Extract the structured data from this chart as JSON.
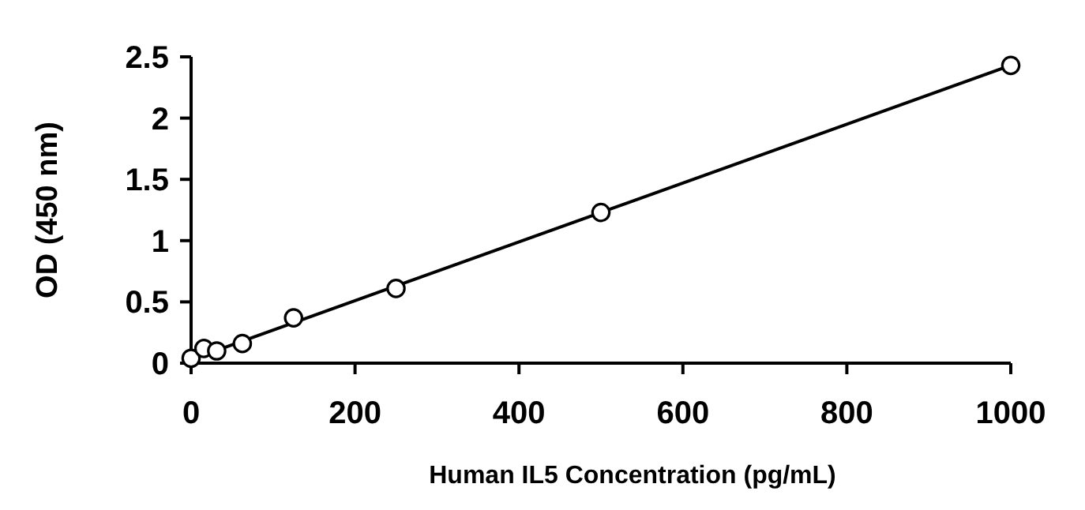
{
  "chart_data": {
    "type": "scatter",
    "xlabel": "Human IL5 Concentration (pg/mL)",
    "ylabel": "OD (450 nm)",
    "x": [
      0,
      15.6,
      31.25,
      62.5,
      125,
      250,
      500,
      1000
    ],
    "series": [
      {
        "color": "#000000",
        "marker": "circle",
        "values": [
          0.04,
          0.12,
          0.1,
          0.16,
          0.37,
          0.61,
          1.23,
          2.43
        ]
      },
      {
        "type": "line",
        "color": "#000000",
        "x": [
          0,
          1000
        ],
        "values": [
          0.03,
          2.43
        ]
      }
    ],
    "xlim": [
      0,
      1000
    ],
    "xticks": [
      0,
      200,
      400,
      600,
      800,
      1000
    ],
    "ylim": [
      0,
      2.5
    ],
    "yticks": [
      0,
      0.5,
      1,
      1.5,
      2,
      2.5
    ],
    "grid": false
  }
}
